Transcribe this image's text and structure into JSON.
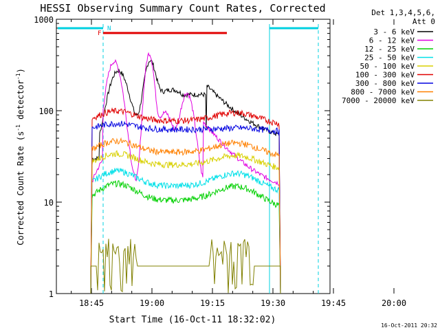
{
  "chart_data": {
    "type": "line",
    "title": "HESSI Observing Summary Count Rates, Corrected",
    "xlabel": "Start Time (16-Oct-11 18:32:02)",
    "ylabel_main": "Corrected Count Rate (s",
    "ylabel_sup1": "-1",
    "ylabel_mid": " detector",
    "ylabel_sup2": "-1",
    "ylabel_end": ")",
    "yscale": "log",
    "ylim": [
      1,
      1000
    ],
    "xlim_minutes_label": "18:32:02 to 20:12",
    "x_ticks": [
      "18:45",
      "19:00",
      "19:15",
      "19:30",
      "19:45",
      "20:00"
    ],
    "y_ticks": [
      "1",
      "10",
      "100",
      "1000"
    ],
    "legend_header": [
      "Det 1,3,4,5,6,",
      "Att 0"
    ],
    "timestamp": "16-Oct-2011 20:32",
    "flags": [
      {
        "label": "F",
        "color": "#e00000"
      },
      {
        "label": "N",
        "color": "#00c8e0"
      }
    ],
    "series": [
      {
        "name": "3 - 6 keV",
        "color": "#000000"
      },
      {
        "name": "6 - 12 keV",
        "color": "#e000e0"
      },
      {
        "name": "12 - 25 keV",
        "color": "#00d000"
      },
      {
        "name": "25 - 50 keV",
        "color": "#00e0e8"
      },
      {
        "name": "50 - 100 keV",
        "color": "#d8d000"
      },
      {
        "name": "100 - 300 keV",
        "color": "#e00000"
      },
      {
        "name": "300 - 800 keV",
        "color": "#0000e0"
      },
      {
        "name": "800 - 7000 keV",
        "color": "#ff8000"
      },
      {
        "name": "7000 - 20000 keV",
        "color": "#808000"
      }
    ]
  }
}
